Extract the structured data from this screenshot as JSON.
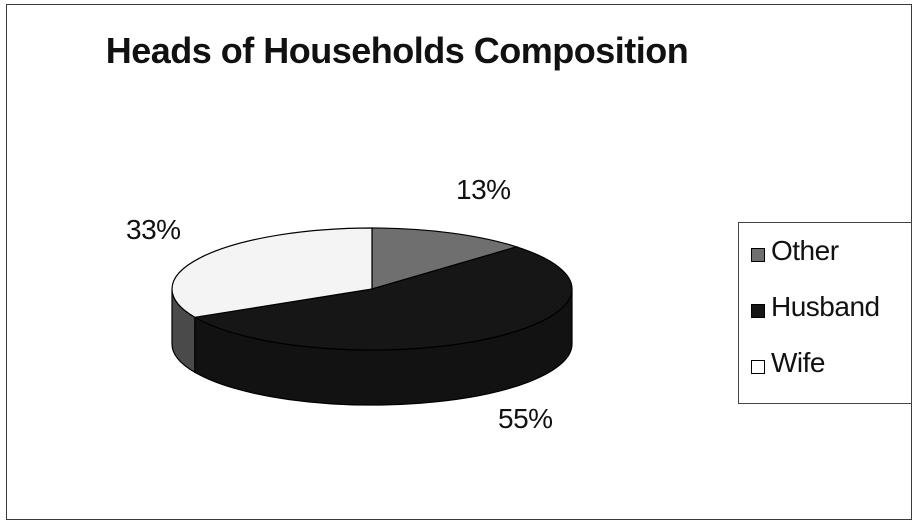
{
  "chart_data": {
    "type": "pie",
    "title": "Heads of Households Composition",
    "slices": [
      {
        "name": "Other",
        "value": 13,
        "label": "13%",
        "color": "#6f6f6f"
      },
      {
        "name": "Husband",
        "value": 55,
        "label": "55%",
        "color": "#161616"
      },
      {
        "name": "Wife",
        "value": 33,
        "label": "33%",
        "color": "#f4f4f4"
      }
    ],
    "legend_position": "right",
    "style": "3d-pie"
  },
  "legend": {
    "items": [
      {
        "label": "Other",
        "color": "#6f6f6f"
      },
      {
        "label": "Husband",
        "color": "#161616"
      },
      {
        "label": "Wife",
        "color": "#ffffff"
      }
    ]
  }
}
